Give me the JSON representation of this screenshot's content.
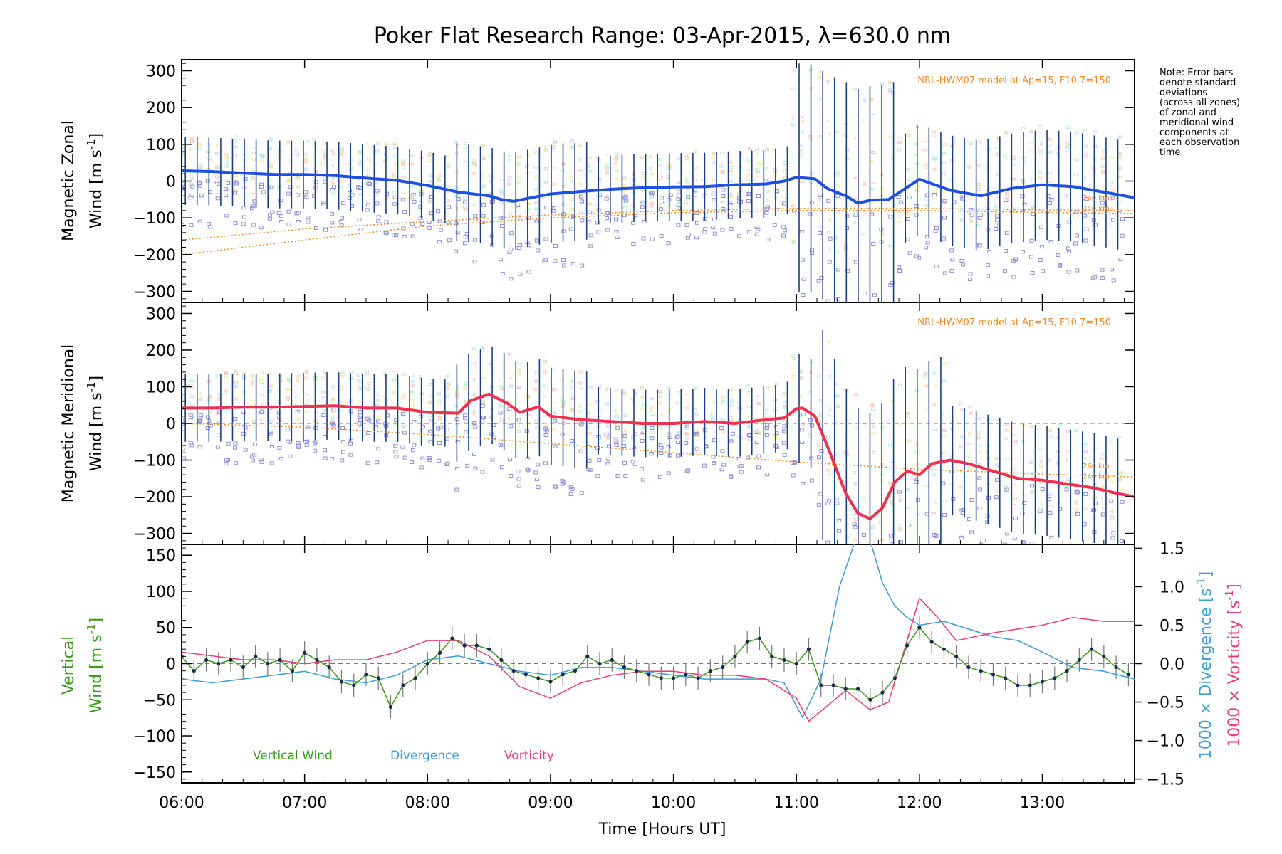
{
  "title": "Poker Flat Research Range: 03-Apr-2015, λ=630.0 nm",
  "note": [
    "Note: Error bars",
    "denote standard",
    "deviations",
    "(across all zones)",
    "of zonal and",
    "meridional wind",
    "components at",
    "each observation",
    "time."
  ],
  "model_label": "NRL-HWM07 model at Ap=15, F10.7=150",
  "model_alt_labels": [
    "260 km",
    "240 km"
  ],
  "x_axis": {
    "label": "Time [Hours UT]",
    "range": [
      6.0,
      13.75
    ],
    "ticks": [
      6,
      7,
      8,
      9,
      10,
      11,
      12,
      13
    ],
    "tick_labels": [
      "06:00",
      "07:00",
      "08:00",
      "09:00",
      "10:00",
      "11:00",
      "12:00",
      "13:00"
    ]
  },
  "panel_zonal": {
    "ylabel": [
      "Magnetic Zonal",
      "Wind [m s",
      "-1",
      "]"
    ],
    "ylim": [
      -330,
      330
    ],
    "yticks": [
      -300,
      -200,
      -100,
      0,
      100,
      200,
      300
    ],
    "ytick_labels": [
      "−300",
      "−200",
      "−100",
      "0",
      "100",
      "200",
      "300"
    ],
    "line_color": "#1f4fe0",
    "errorbar_color": "#1a3f86",
    "scatter_color": "#8f8fd8"
  },
  "panel_meridional": {
    "ylabel": [
      "Magnetic Meridional",
      "Wind [m s",
      "-1",
      "]"
    ],
    "ylim": [
      -330,
      330
    ],
    "yticks": [
      -300,
      -200,
      -100,
      0,
      100,
      200,
      300
    ],
    "ytick_labels": [
      "−300",
      "−200",
      "−100",
      "0",
      "100",
      "200",
      "300"
    ],
    "line_color": "#f0304f",
    "errorbar_color": "#1a3f86",
    "scatter_color": "#8f8fd8"
  },
  "panel_vertical": {
    "ylabel_left": [
      "Vertical",
      "Wind [m s",
      "-1",
      "]"
    ],
    "ylim": [
      -165,
      165
    ],
    "yticks": [
      -150,
      -100,
      -50,
      0,
      50,
      100,
      150
    ],
    "ytick_labels": [
      "−150",
      "−100",
      "−50",
      "0",
      "50",
      "100",
      "150"
    ],
    "right_ylim": [
      -1.55,
      1.55
    ],
    "right_yticks": [
      -1.5,
      -1.0,
      -0.5,
      0.0,
      0.5,
      1.0,
      1.5
    ],
    "right_ytick_labels": [
      "−1.5",
      "−1.0",
      "−0.5",
      "0.0",
      "0.5",
      "1.0",
      "1.5"
    ],
    "right_label_divergence": [
      "1000 × Divergence [s",
      "-1",
      "]"
    ],
    "right_label_vorticity": [
      "1000 × Vorticity [s",
      "-1",
      "]"
    ],
    "legend": [
      {
        "label": "Vertical Wind",
        "color": "#3a9a1a"
      },
      {
        "label": "Divergence",
        "color": "#3d9bd6"
      },
      {
        "label": "Vorticity",
        "color": "#ee3a7a"
      }
    ]
  },
  "chart_data": [
    {
      "type": "line",
      "title": "Poker Flat Research Range: 03-Apr-2015, λ=630.0 nm",
      "ylabel": "Magnetic Zonal Wind [m s-1]",
      "xlabel": "",
      "ylim": [
        -330,
        330
      ],
      "series": [
        {
          "name": "",
          "color": "#1f4fe0",
          "x": [
            6.0,
            6.25,
            6.5,
            6.75,
            7.0,
            7.25,
            7.5,
            7.75,
            8.0,
            8.25,
            8.5,
            8.6,
            8.7,
            8.8,
            9.0,
            9.25,
            9.5,
            9.75,
            10.0,
            10.25,
            10.5,
            10.75,
            10.9,
            11.0,
            11.15,
            11.25,
            11.4,
            11.5,
            11.6,
            11.75,
            12.0,
            12.25,
            12.5,
            12.75,
            13.0,
            13.25,
            13.5,
            13.75
          ],
          "y": [
            28,
            26,
            22,
            18,
            18,
            15,
            8,
            2,
            -12,
            -30,
            -40,
            -50,
            -55,
            -48,
            -35,
            -28,
            -22,
            -18,
            -16,
            -15,
            -10,
            -8,
            0,
            10,
            6,
            -20,
            -40,
            -60,
            -52,
            -50,
            5,
            -25,
            -40,
            -20,
            -10,
            -15,
            -30,
            -45
          ]
        },
        {
          "name": "NRL-HWM07 model at Ap=15, F10.7=150",
          "color": "#f08a24",
          "x": [
            6.0,
            7.0,
            8.0,
            9.0,
            10.0,
            11.0,
            12.0,
            13.0,
            13.75
          ],
          "y": [
            -160,
            -130,
            -110,
            -92,
            -80,
            -74,
            -74,
            -78,
            -80
          ]
        },
        {
          "name": "",
          "color": "#f08a24",
          "x": [
            6.0,
            7.0,
            8.0,
            9.0,
            10.0,
            11.0,
            12.0,
            13.0,
            13.75
          ],
          "y": [
            -200,
            -160,
            -122,
            -100,
            -86,
            -80,
            -80,
            -85,
            -88
          ]
        }
      ]
    },
    {
      "type": "line",
      "title": "",
      "ylabel": "Magnetic Meridional Wind [m s-1]",
      "xlabel": "",
      "ylim": [
        -330,
        330
      ],
      "series": [
        {
          "name": "",
          "color": "#f0304f",
          "x": [
            6.0,
            6.25,
            6.5,
            6.75,
            7.0,
            7.25,
            7.5,
            7.75,
            8.0,
            8.25,
            8.35,
            8.5,
            8.65,
            8.75,
            8.9,
            9.0,
            9.25,
            9.5,
            9.75,
            10.0,
            10.25,
            10.5,
            10.75,
            10.9,
            11.0,
            11.05,
            11.15,
            11.25,
            11.4,
            11.5,
            11.6,
            11.7,
            11.8,
            11.9,
            12.0,
            12.1,
            12.25,
            12.4,
            12.6,
            12.8,
            13.0,
            13.2,
            13.4,
            13.6,
            13.75
          ],
          "y": [
            42,
            42,
            44,
            44,
            46,
            48,
            42,
            42,
            30,
            28,
            62,
            80,
            55,
            30,
            45,
            20,
            10,
            5,
            0,
            0,
            5,
            0,
            10,
            15,
            40,
            42,
            20,
            -60,
            -190,
            -245,
            -260,
            -230,
            -160,
            -130,
            -140,
            -110,
            -100,
            -110,
            -130,
            -150,
            -155,
            -165,
            -175,
            -190,
            -200
          ]
        },
        {
          "name": "NRL-HWM07 model at Ap=15, F10.7=150",
          "color": "#f08a24",
          "x": [
            6.0,
            7.0,
            8.0,
            9.0,
            10.0,
            11.0,
            12.0,
            13.0,
            13.75
          ],
          "y": [
            0,
            -10,
            -30,
            -55,
            -80,
            -105,
            -125,
            -138,
            -146
          ]
        }
      ]
    },
    {
      "type": "line",
      "title": "",
      "ylabel": "Vertical Wind [m s-1]",
      "xlabel": "Time [Hours UT]",
      "ylim": [
        -165,
        165
      ],
      "y2label": "1000 × Divergence [s-1] / 1000 × Vorticity [s-1]",
      "y2lim": [
        -1.55,
        1.55
      ],
      "series": [
        {
          "name": "Vertical Wind",
          "color": "#3a9a1a",
          "axis": "left",
          "x": [
            6.0,
            6.1,
            6.2,
            6.3,
            6.4,
            6.5,
            6.6,
            6.7,
            6.8,
            6.9,
            7.0,
            7.1,
            7.2,
            7.3,
            7.4,
            7.5,
            7.6,
            7.7,
            7.8,
            7.9,
            8.0,
            8.1,
            8.2,
            8.3,
            8.4,
            8.5,
            8.6,
            8.7,
            8.8,
            8.9,
            9.0,
            9.1,
            9.2,
            9.3,
            9.4,
            9.5,
            9.6,
            9.7,
            9.8,
            9.9,
            10.0,
            10.1,
            10.2,
            10.3,
            10.4,
            10.5,
            10.6,
            10.7,
            10.8,
            10.9,
            11.0,
            11.1,
            11.2,
            11.3,
            11.4,
            11.5,
            11.6,
            11.7,
            11.8,
            11.9,
            12.0,
            12.1,
            12.2,
            12.3,
            12.4,
            12.5,
            12.6,
            12.7,
            12.8,
            12.9,
            13.0,
            13.1,
            13.2,
            13.3,
            13.4,
            13.5,
            13.6,
            13.7
          ],
          "y": [
            10,
            -10,
            5,
            0,
            5,
            -5,
            10,
            0,
            5,
            -10,
            15,
            5,
            -5,
            -25,
            -30,
            -15,
            -20,
            -60,
            -30,
            -20,
            0,
            15,
            35,
            25,
            25,
            20,
            5,
            -10,
            -15,
            -20,
            -25,
            -15,
            -10,
            10,
            0,
            5,
            -5,
            -10,
            -15,
            -20,
            -20,
            -15,
            -20,
            -10,
            -5,
            10,
            30,
            35,
            10,
            5,
            0,
            20,
            -30,
            -30,
            -35,
            -35,
            -50,
            -40,
            -20,
            25,
            50,
            30,
            20,
            10,
            -5,
            -10,
            -15,
            -20,
            -30,
            -30,
            -25,
            -20,
            -10,
            5,
            20,
            10,
            -5,
            -15
          ]
        },
        {
          "name": "Divergence",
          "color": "#3d9bd6",
          "axis": "right",
          "x": [
            6.0,
            6.25,
            6.5,
            6.75,
            7.0,
            7.25,
            7.5,
            7.75,
            8.0,
            8.25,
            8.5,
            8.75,
            9.0,
            9.25,
            9.5,
            9.75,
            10.0,
            10.25,
            10.5,
            10.75,
            10.9,
            11.05,
            11.2,
            11.35,
            11.5,
            11.6,
            11.7,
            11.8,
            11.9,
            12.0,
            12.2,
            12.4,
            12.6,
            12.8,
            13.0,
            13.25,
            13.5,
            13.75
          ],
          "y": [
            -0.2,
            -0.25,
            -0.2,
            -0.15,
            -0.1,
            -0.2,
            -0.25,
            -0.15,
            0.05,
            0.1,
            0.0,
            -0.1,
            -0.15,
            -0.05,
            -0.05,
            -0.1,
            -0.15,
            -0.2,
            -0.2,
            -0.2,
            -0.25,
            -0.7,
            -0.2,
            1.0,
            1.7,
            1.6,
            1.05,
            0.75,
            0.6,
            0.5,
            0.55,
            0.45,
            0.35,
            0.3,
            0.15,
            -0.05,
            -0.1,
            -0.2
          ]
        },
        {
          "name": "Vorticity",
          "color": "#ee3a7a",
          "axis": "right",
          "x": [
            6.0,
            6.25,
            6.5,
            6.75,
            7.0,
            7.25,
            7.5,
            7.75,
            8.0,
            8.25,
            8.5,
            8.75,
            9.0,
            9.25,
            9.5,
            9.75,
            10.0,
            10.25,
            10.5,
            10.75,
            11.0,
            11.1,
            11.25,
            11.4,
            11.6,
            11.75,
            11.9,
            12.0,
            12.15,
            12.3,
            12.45,
            12.6,
            12.8,
            13.0,
            13.25,
            13.5,
            13.75
          ],
          "y": [
            0.15,
            0.1,
            0.05,
            0.05,
            0.0,
            0.05,
            0.05,
            0.15,
            0.3,
            0.3,
            0.1,
            -0.3,
            -0.45,
            -0.25,
            -0.15,
            -0.1,
            -0.1,
            -0.15,
            -0.15,
            -0.2,
            -0.45,
            -0.75,
            -0.55,
            -0.35,
            -0.6,
            -0.5,
            0.3,
            0.85,
            0.6,
            0.3,
            0.35,
            0.4,
            0.45,
            0.5,
            0.6,
            0.55,
            0.55
          ]
        }
      ]
    }
  ]
}
